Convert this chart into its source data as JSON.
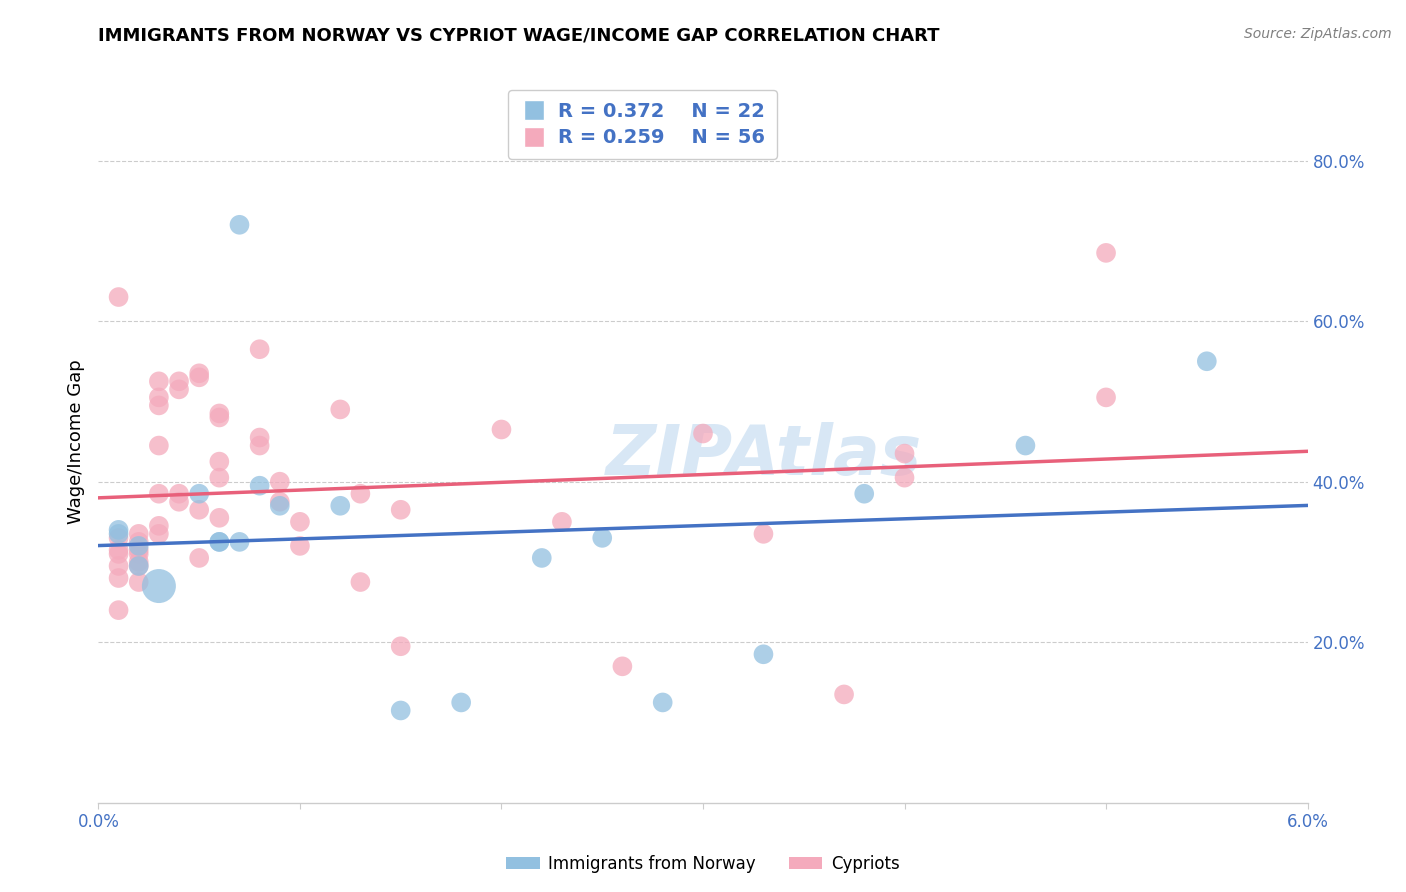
{
  "title": "IMMIGRANTS FROM NORWAY VS CYPRIOT WAGE/INCOME GAP CORRELATION CHART",
  "source": "Source: ZipAtlas.com",
  "ylabel": "Wage/Income Gap",
  "legend_blue_r": "R = 0.372",
  "legend_blue_n": "N = 22",
  "legend_pink_r": "R = 0.259",
  "legend_pink_n": "N = 56",
  "legend_label_blue": "Immigrants from Norway",
  "legend_label_pink": "Cypriots",
  "blue_color": "#92C0E0",
  "pink_color": "#F4AABC",
  "blue_line_color": "#4472C4",
  "pink_line_color": "#E8607A",
  "watermark": "ZIPAtlas",
  "xlim": [
    0.0,
    0.06
  ],
  "ylim": [
    0.0,
    0.9
  ],
  "ytick_vals": [
    0.2,
    0.4,
    0.6,
    0.8
  ],
  "ytick_labels": [
    "20.0%",
    "40.0%",
    "60.0%",
    "80.0%"
  ],
  "blue_points_x": [
    0.001,
    0.001,
    0.002,
    0.002,
    0.003,
    0.005,
    0.006,
    0.006,
    0.007,
    0.007,
    0.008,
    0.009,
    0.012,
    0.015,
    0.018,
    0.022,
    0.025,
    0.028,
    0.033,
    0.038,
    0.046,
    0.055
  ],
  "blue_points_y": [
    0.335,
    0.34,
    0.32,
    0.295,
    0.27,
    0.385,
    0.325,
    0.325,
    0.325,
    0.72,
    0.395,
    0.37,
    0.37,
    0.115,
    0.125,
    0.305,
    0.33,
    0.125,
    0.185,
    0.385,
    0.445,
    0.55
  ],
  "blue_sizes": [
    200,
    200,
    200,
    200,
    600,
    200,
    200,
    200,
    200,
    200,
    200,
    200,
    200,
    200,
    200,
    200,
    200,
    200,
    200,
    200,
    200,
    200
  ],
  "pink_points_x": [
    0.001,
    0.001,
    0.001,
    0.001,
    0.001,
    0.001,
    0.001,
    0.002,
    0.002,
    0.002,
    0.002,
    0.002,
    0.002,
    0.002,
    0.003,
    0.003,
    0.003,
    0.003,
    0.003,
    0.003,
    0.003,
    0.004,
    0.004,
    0.004,
    0.004,
    0.005,
    0.005,
    0.005,
    0.005,
    0.006,
    0.006,
    0.006,
    0.006,
    0.006,
    0.008,
    0.008,
    0.008,
    0.009,
    0.009,
    0.01,
    0.01,
    0.012,
    0.013,
    0.013,
    0.015,
    0.015,
    0.02,
    0.023,
    0.026,
    0.03,
    0.033,
    0.037,
    0.04,
    0.04,
    0.05,
    0.05
  ],
  "pink_points_y": [
    0.63,
    0.33,
    0.315,
    0.31,
    0.295,
    0.28,
    0.24,
    0.335,
    0.325,
    0.315,
    0.31,
    0.3,
    0.295,
    0.275,
    0.525,
    0.505,
    0.495,
    0.445,
    0.385,
    0.345,
    0.335,
    0.525,
    0.515,
    0.385,
    0.375,
    0.535,
    0.53,
    0.365,
    0.305,
    0.485,
    0.48,
    0.425,
    0.405,
    0.355,
    0.565,
    0.455,
    0.445,
    0.4,
    0.375,
    0.35,
    0.32,
    0.49,
    0.385,
    0.275,
    0.365,
    0.195,
    0.465,
    0.35,
    0.17,
    0.46,
    0.335,
    0.135,
    0.435,
    0.405,
    0.685,
    0.505
  ],
  "pink_sizes": [
    200,
    200,
    200,
    200,
    200,
    200,
    200,
    200,
    200,
    200,
    200,
    200,
    200,
    200,
    200,
    200,
    200,
    200,
    200,
    200,
    200,
    200,
    200,
    200,
    200,
    200,
    200,
    200,
    200,
    200,
    200,
    200,
    200,
    200,
    200,
    200,
    200,
    200,
    200,
    200,
    200,
    200,
    200,
    200,
    200,
    200,
    200,
    200,
    200,
    200,
    200,
    200,
    200,
    200,
    200,
    200
  ]
}
